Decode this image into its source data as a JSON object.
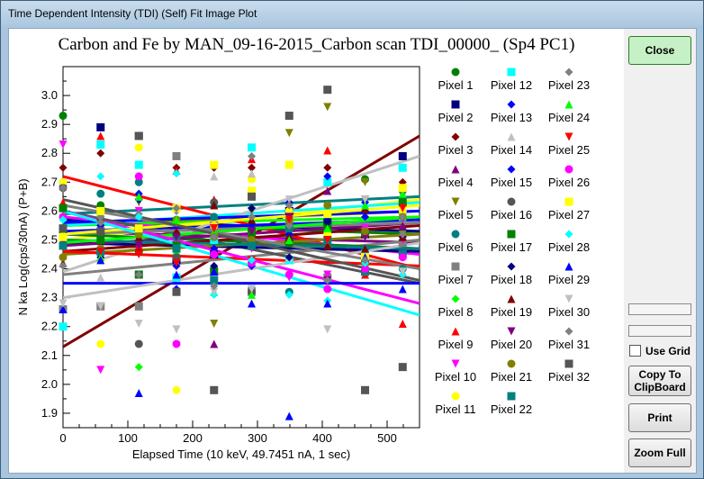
{
  "window": {
    "title": "Time Dependent Intensity (TDI) (Self) Fit Image Plot"
  },
  "buttons": {
    "close": "Close",
    "copy": "Copy To ClipBoard",
    "print": "Print",
    "zoom": "Zoom Full"
  },
  "use_grid": {
    "label": "Use Grid",
    "checked": false
  },
  "chart_data": {
    "type": "scatter",
    "title": "Carbon and Fe by MAN_09-16-2015_Carbon scan TDI_00000_ (Sp4 PC1)",
    "xlabel": "Elapsed Time (10 keV, 49.7451 nA, 1 sec)",
    "ylabel": "N ka Log(cps/30nA) (P+B)",
    "xlim": [
      0,
      550
    ],
    "ylim": [
      1.85,
      3.1
    ],
    "xticks": [
      0,
      100,
      200,
      300,
      400,
      500
    ],
    "yticks": [
      1.9,
      2.0,
      2.1,
      2.2,
      2.3,
      2.4,
      2.5,
      2.6,
      2.7,
      2.8,
      2.9,
      3.0
    ],
    "grid": false,
    "legend_position": "right",
    "x_times": [
      0,
      58,
      117,
      175,
      233,
      291,
      349,
      408,
      466,
      524
    ],
    "series": [
      {
        "name": "Pixel 1",
        "color": "#008000",
        "marker": "circle",
        "y": [
          2.93,
          2.62,
          2.46,
          2.52,
          2.4,
          2.52,
          2.51,
          2.53,
          2.71,
          2.49
        ],
        "fit": [
          2.56,
          2.52
        ]
      },
      {
        "name": "Pixel 2",
        "color": "#000080",
        "marker": "square",
        "y": [
          2.52,
          2.89,
          2.54,
          2.43,
          2.45,
          2.48,
          2.6,
          2.56,
          2.52,
          2.79
        ],
        "fit": [
          2.57,
          2.53
        ]
      },
      {
        "name": "Pixel 3",
        "color": "#800000",
        "marker": "diamond",
        "y": [
          2.75,
          2.8,
          2.46,
          2.75,
          2.75,
          2.75,
          2.5,
          2.75,
          2.6,
          2.7
        ],
        "fit": [
          2.13,
          2.86
        ]
      },
      {
        "name": "Pixel 4",
        "color": "#800080",
        "marker": "triangle-up",
        "y": [
          2.7,
          2.6,
          2.49,
          2.37,
          2.14,
          2.5,
          2.52,
          2.67,
          2.4,
          2.55
        ],
        "fit": [
          2.53,
          2.49
        ]
      },
      {
        "name": "Pixel 5",
        "color": "#808000",
        "marker": "triangle-down",
        "y": [
          2.61,
          2.57,
          2.63,
          2.56,
          2.21,
          2.6,
          2.87,
          2.96,
          2.7,
          2.52
        ],
        "fit": [
          2.55,
          2.6
        ]
      },
      {
        "name": "Pixel 6",
        "color": "#008080",
        "marker": "circle",
        "y": [
          2.7,
          2.66,
          2.7,
          2.51,
          2.58,
          2.33,
          2.32,
          2.55,
          2.47,
          2.4
        ],
        "fit": [
          2.59,
          2.65
        ]
      },
      {
        "name": "Pixel 7",
        "color": "#808080",
        "marker": "square",
        "y": [
          2.26,
          2.27,
          2.27,
          2.79,
          2.55,
          2.32,
          2.55,
          2.37,
          2.43,
          2.49
        ],
        "fit": [
          2.38,
          2.5
        ]
      },
      {
        "name": "Pixel 8",
        "color": "#00ff00",
        "marker": "diamond",
        "y": [
          2.57,
          2.58,
          2.06,
          2.45,
          2.52,
          2.55,
          2.53,
          2.53,
          2.41,
          2.59
        ],
        "fit": [
          2.55,
          2.58
        ]
      },
      {
        "name": "Pixel 9",
        "color": "#ff0000",
        "marker": "triangle-up",
        "y": [
          2.63,
          2.86,
          2.48,
          2.74,
          2.64,
          2.78,
          2.54,
          2.81,
          2.38,
          2.21
        ],
        "fit": [
          2.72,
          2.4
        ]
      },
      {
        "name": "Pixel 10",
        "color": "#ff00ff",
        "marker": "triangle-down",
        "y": [
          2.83,
          2.05,
          2.6,
          2.42,
          2.55,
          2.47,
          2.37,
          2.38,
          2.54,
          2.5
        ],
        "fit": [
          2.58,
          2.45
        ]
      },
      {
        "name": "Pixel 11",
        "color": "#ffff00",
        "marker": "circle",
        "y": [
          2.7,
          2.14,
          2.82,
          1.98,
          2.55,
          2.71,
          2.6,
          2.52,
          2.52,
          2.6
        ],
        "fit": [
          2.5,
          2.64
        ]
      },
      {
        "name": "Pixel 12",
        "color": "#00ffff",
        "marker": "square",
        "y": [
          2.2,
          2.83,
          2.76,
          2.37,
          2.5,
          2.82,
          2.43,
          2.7,
          2.45,
          2.75
        ],
        "fit": [
          2.55,
          2.63
        ]
      },
      {
        "name": "Pixel 13",
        "color": "#0000ff",
        "marker": "diamond",
        "y": [
          2.54,
          2.55,
          2.64,
          2.33,
          2.51,
          2.41,
          2.52,
          2.58,
          2.63,
          2.62
        ],
        "fit": [
          2.53,
          2.57
        ]
      },
      {
        "name": "Pixel 14",
        "color": "#c0c0c0",
        "marker": "triangle-up",
        "y": [
          2.58,
          2.37,
          2.38,
          2.42,
          2.72,
          2.73,
          2.44,
          2.49,
          2.53,
          2.58
        ],
        "fit": [
          2.39,
          2.79
        ]
      },
      {
        "name": "Pixel 15",
        "color": "#0000ff",
        "marker": "diamond",
        "y": [
          2.51,
          2.55,
          2.66,
          2.41,
          2.47,
          2.55,
          2.63,
          2.72,
          2.58,
          2.58
        ],
        "fit": [
          2.56,
          2.6
        ]
      },
      {
        "name": "Pixel 16",
        "color": "#555555",
        "marker": "circle",
        "y": [
          2.68,
          2.57,
          2.14,
          2.44,
          2.63,
          2.32,
          2.55,
          2.48,
          2.52,
          2.67
        ],
        "fit": [
          2.6,
          2.35
        ]
      },
      {
        "name": "Pixel 17",
        "color": "#008000",
        "marker": "square",
        "y": [
          2.61,
          2.5,
          2.38,
          2.48,
          2.39,
          2.53,
          2.49,
          2.55,
          2.43,
          2.63
        ],
        "fit": [
          2.52,
          2.47
        ]
      },
      {
        "name": "Pixel 18",
        "color": "#000080",
        "marker": "diamond",
        "y": [
          2.48,
          2.44,
          2.38,
          2.52,
          2.41,
          2.61,
          2.44,
          2.56,
          2.42,
          2.51
        ],
        "fit": [
          2.49,
          2.46
        ]
      },
      {
        "name": "Pixel 19",
        "color": "#800000",
        "marker": "triangle-up",
        "y": [
          2.42,
          2.46,
          2.51,
          2.53,
          2.62,
          2.57,
          2.51,
          2.48,
          2.47,
          2.51
        ],
        "fit": [
          2.46,
          2.55
        ]
      },
      {
        "name": "Pixel 20",
        "color": "#800080",
        "marker": "triangle-down",
        "y": [
          2.49,
          2.6,
          2.48,
          2.51,
          2.54,
          2.53,
          2.58,
          2.36,
          2.51,
          2.67
        ],
        "fit": [
          2.48,
          2.56
        ]
      },
      {
        "name": "Pixel 21",
        "color": "#808000",
        "marker": "circle",
        "y": [
          2.44,
          2.47,
          2.52,
          2.57,
          2.51,
          2.5,
          2.57,
          2.62,
          2.53,
          2.58
        ],
        "fit": [
          2.45,
          2.52
        ]
      },
      {
        "name": "Pixel 22",
        "color": "#008080",
        "marker": "square",
        "y": [
          2.48,
          2.46,
          2.86,
          2.47,
          2.36,
          2.48,
          2.54,
          2.5,
          2.39,
          2.45
        ],
        "fit": [
          2.5,
          2.47
        ]
      },
      {
        "name": "Pixel 23",
        "color": "#808080",
        "marker": "diamond",
        "y": [
          2.41,
          2.58,
          2.59,
          2.6,
          2.51,
          2.58,
          2.55,
          2.59,
          2.43,
          2.58
        ],
        "fit": [
          2.52,
          2.56
        ]
      },
      {
        "name": "Pixel 24",
        "color": "#00ff00",
        "marker": "triangle-up",
        "y": [
          2.53,
          2.44,
          2.65,
          2.57,
          2.32,
          2.31,
          2.5,
          2.54,
          2.62,
          2.66
        ],
        "fit": [
          2.49,
          2.58
        ]
      },
      {
        "name": "Pixel 25",
        "color": "#ff0000",
        "marker": "triangle-down",
        "y": [
          2.51,
          2.46,
          2.45,
          2.42,
          2.54,
          2.43,
          2.57,
          2.5,
          2.64,
          2.61
        ],
        "fit": [
          2.46,
          2.41
        ]
      },
      {
        "name": "Pixel 26",
        "color": "#ff00ff",
        "marker": "circle",
        "y": [
          2.58,
          2.53,
          2.72,
          2.14,
          2.45,
          2.42,
          2.38,
          2.33,
          2.4,
          2.44
        ],
        "fit": [
          2.6,
          2.28
        ]
      },
      {
        "name": "Pixel 27",
        "color": "#ffff00",
        "marker": "square",
        "y": [
          2.51,
          2.6,
          2.54,
          2.61,
          2.76,
          2.67,
          2.76,
          2.59,
          2.44,
          2.68
        ],
        "fit": [
          2.52,
          2.62
        ]
      },
      {
        "name": "Pixel 28",
        "color": "#00ffff",
        "marker": "diamond",
        "y": [
          2.57,
          2.72,
          2.58,
          2.73,
          2.31,
          2.43,
          2.31,
          2.29,
          2.42,
          2.38
        ],
        "fit": [
          2.6,
          2.24
        ]
      },
      {
        "name": "Pixel 29",
        "color": "#0000ff",
        "marker": "triangle-up",
        "y": [
          2.26,
          2.43,
          1.97,
          2.38,
          2.39,
          2.28,
          1.89,
          2.28,
          2.44,
          2.33
        ],
        "fit": [
          2.35,
          2.35
        ]
      },
      {
        "name": "Pixel 30",
        "color": "#c0c0c0",
        "marker": "triangle-down",
        "y": [
          2.28,
          2.27,
          2.21,
          2.19,
          2.32,
          2.33,
          2.64,
          2.19,
          2.64,
          2.39
        ],
        "fit": [
          2.3,
          2.49
        ]
      },
      {
        "name": "Pixel 31",
        "color": "#808080",
        "marker": "diamond",
        "y": [
          2.68,
          2.56,
          2.38,
          2.61,
          2.34,
          2.79,
          2.62,
          2.36,
          2.43,
          2.52
        ],
        "fit": [
          2.62,
          2.4
        ]
      },
      {
        "name": "Pixel 32",
        "color": "#555555",
        "marker": "square",
        "y": [
          2.54,
          2.53,
          2.86,
          2.32,
          1.98,
          2.65,
          2.93,
          3.02,
          1.98,
          2.06
        ],
        "fit": [
          2.64,
          2.36
        ]
      }
    ]
  }
}
